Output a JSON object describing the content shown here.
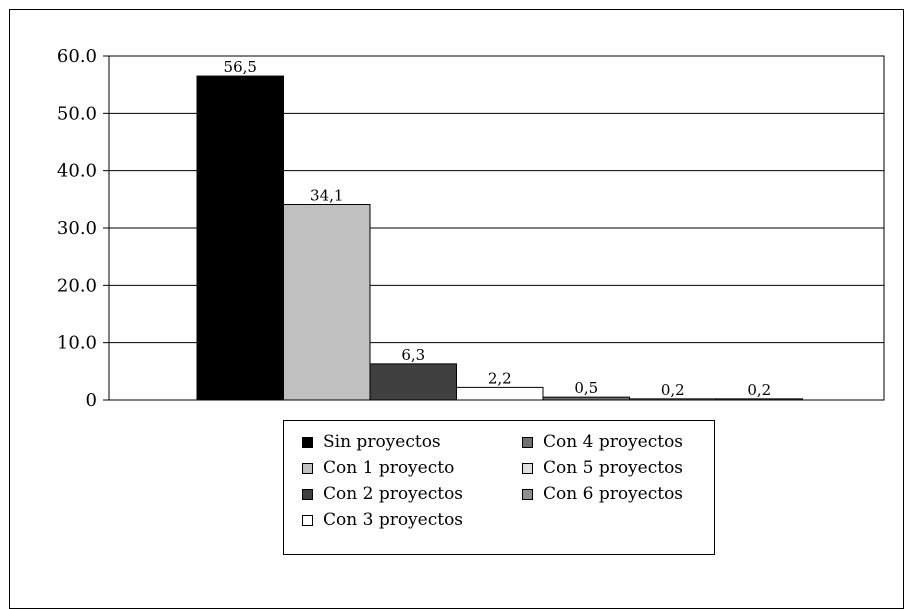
{
  "chart_data": {
    "type": "bar",
    "categories": [
      "Sin proyectos",
      "Con 1 proyecto",
      "Con 2 proyectos",
      "Con 3 proyectos",
      "Con 4 proyectos",
      "Con 5 proyectos",
      "Con 6 proyectos"
    ],
    "values": [
      56.5,
      34.1,
      6.3,
      2.2,
      0.5,
      0.2,
      0.2
    ],
    "value_labels": [
      "56,5",
      "34,1",
      "6,3",
      "2,2",
      "0,5",
      "0,2",
      "0,2"
    ],
    "colors": [
      "#000000",
      "#c0c0c0",
      "#404040",
      "#ffffff",
      "#707070",
      "#e0e0e0",
      "#909090"
    ],
    "ylim": [
      0,
      60
    ],
    "yticks": [
      "0",
      "10.0",
      "20.0",
      "30.0",
      "40.0",
      "50.0",
      "60.0"
    ],
    "grid": true,
    "legend": {
      "position": "bottom",
      "entries": [
        "Sin proyectos",
        "Con 1 proyecto",
        "Con 2 proyectos",
        "Con 3 proyectos",
        "Con 4 proyectos",
        "Con 5 proyectos",
        "Con 6 proyectos"
      ]
    }
  }
}
